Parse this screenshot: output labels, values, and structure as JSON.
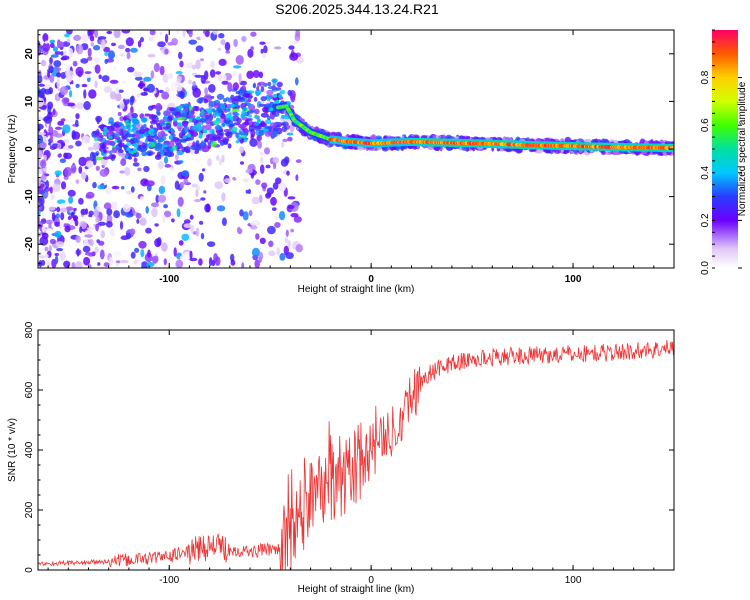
{
  "title": "S206.2025.344.13.24.R21",
  "chart_data": [
    {
      "type": "heatmap",
      "xlabel": "Height of straight line (km)",
      "ylabel": "Frequency (Hz)",
      "xlim": [
        -165,
        150
      ],
      "ylim": [
        -25,
        25
      ],
      "x_ticks": [
        -100,
        0,
        100
      ],
      "y_ticks": [
        -20,
        -10,
        0,
        10,
        20
      ],
      "colorbar": {
        "label": "Normalized spectral amplitude",
        "range": [
          0,
          1
        ],
        "ticks": [
          0.0,
          0.2,
          0.4,
          0.6,
          0.8
        ]
      },
      "ridge": {
        "x": [
          -135,
          -120,
          -100,
          -80,
          -60,
          -50,
          -42,
          -38,
          -30,
          -20,
          -10,
          0,
          20,
          50,
          80,
          110,
          150
        ],
        "frequency": [
          2.0,
          2.5,
          3.5,
          5.5,
          7.5,
          8.5,
          9.0,
          6.0,
          3.5,
          2.0,
          1.5,
          1.2,
          1.5,
          1.2,
          0.8,
          0.5,
          0.2
        ]
      }
    },
    {
      "type": "line",
      "xlabel": "Height of straight line (km)",
      "ylabel": "SNR (10 * v/v)",
      "xlim": [
        -165,
        150
      ],
      "ylim": [
        0,
        800
      ],
      "x_ticks": [
        -100,
        0,
        100
      ],
      "y_ticks": [
        0,
        200,
        400,
        600,
        800
      ],
      "series_color": "#ee3333",
      "trend": {
        "x": [
          -165,
          -130,
          -100,
          -80,
          -60,
          -45,
          -40,
          -35,
          -30,
          -25,
          -20,
          -15,
          -10,
          -5,
          0,
          5,
          10,
          15,
          20,
          25,
          30,
          40,
          60,
          80,
          100,
          120,
          150
        ],
        "snr": [
          20,
          28,
          45,
          80,
          60,
          75,
          110,
          170,
          240,
          260,
          280,
          310,
          330,
          360,
          390,
          420,
          460,
          520,
          580,
          630,
          660,
          690,
          710,
          715,
          720,
          725,
          740
        ]
      }
    }
  ]
}
